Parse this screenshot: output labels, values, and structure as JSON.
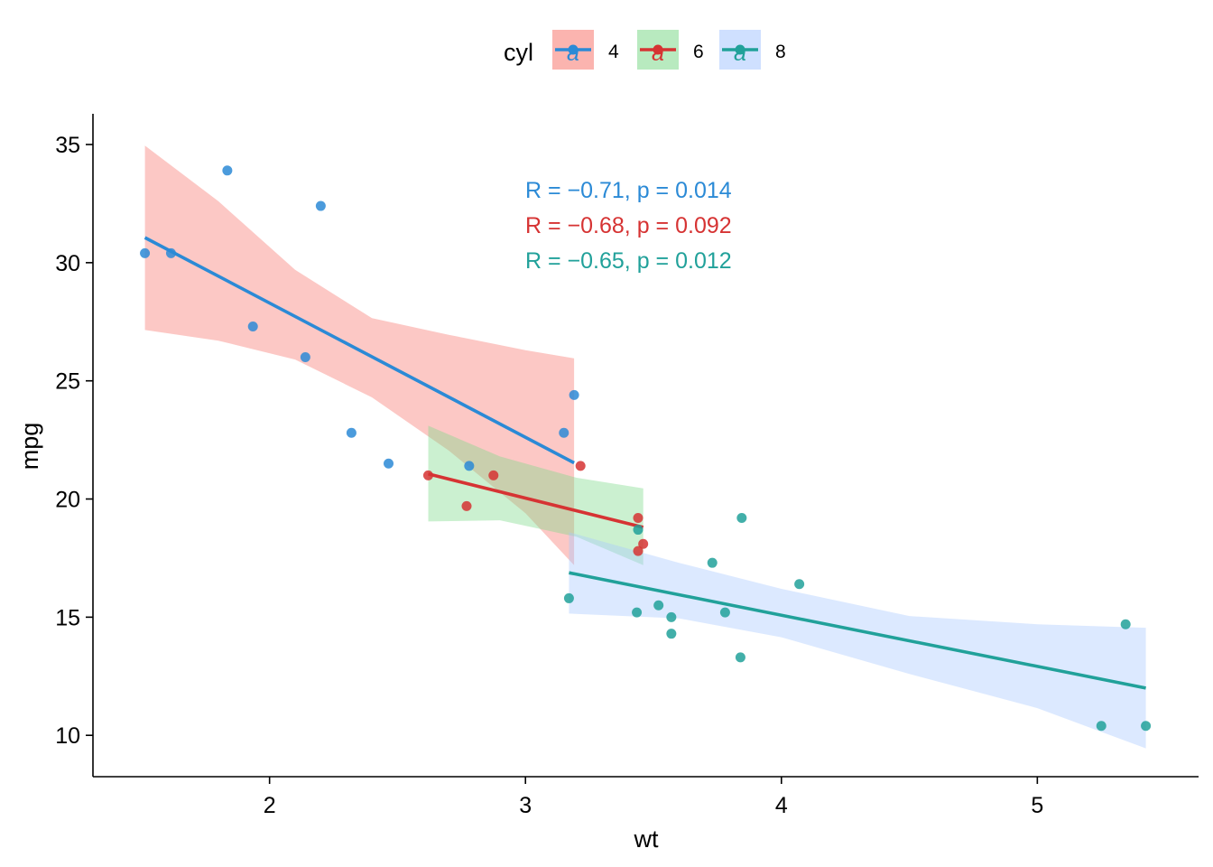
{
  "chart_data": {
    "type": "scatter",
    "xlabel": "wt",
    "ylabel": "mpg",
    "xlim": [
      1.31,
      5.63
    ],
    "ylim": [
      8.25,
      36.3
    ],
    "x_ticks": [
      2,
      3,
      4,
      5
    ],
    "y_ticks": [
      10,
      15,
      20,
      25,
      30,
      35
    ],
    "x_tick_labels": [
      "2",
      "3",
      "4",
      "5"
    ],
    "y_tick_labels": [
      "10",
      "15",
      "20",
      "25",
      "30",
      "35"
    ],
    "grid": false,
    "legend": {
      "title": "cyl",
      "placement": "top",
      "glyph_letter": "a"
    },
    "series": [
      {
        "name": "4",
        "color": "#2b8ad6",
        "band_color": "#f8766d",
        "x": [
          2.32,
          3.19,
          3.15,
          2.2,
          1.615,
          1.835,
          2.465,
          1.935,
          2.14,
          1.513,
          2.78
        ],
        "y": [
          22.8,
          24.4,
          22.8,
          32.4,
          30.4,
          33.9,
          21.5,
          27.3,
          26.0,
          30.4,
          21.4
        ],
        "fit": {
          "x": [
            1.513,
            3.19
          ],
          "y": [
            31.06,
            21.53
          ]
        },
        "band": {
          "x": [
            1.513,
            1.8,
            2.1,
            2.4,
            2.7,
            3.0,
            3.19
          ],
          "upper": [
            34.95,
            32.6,
            29.7,
            27.65,
            26.95,
            26.3,
            25.95
          ],
          "lower": [
            27.15,
            26.7,
            25.9,
            24.3,
            22.05,
            19.4,
            17.2
          ]
        },
        "stat_label": "R = −0.71, p = 0.014"
      },
      {
        "name": "6",
        "color": "#d63333",
        "band_color": "#7ed98a",
        "x": [
          2.62,
          2.875,
          3.215,
          3.46,
          3.44,
          3.44,
          2.77
        ],
        "y": [
          21.0,
          21.0,
          21.4,
          18.1,
          19.2,
          17.8,
          19.7
        ],
        "fit": {
          "x": [
            2.62,
            3.46
          ],
          "y": [
            21.06,
            18.8
          ]
        },
        "band": {
          "x": [
            2.62,
            2.9,
            3.2,
            3.46
          ],
          "upper": [
            23.1,
            21.8,
            20.9,
            20.45
          ],
          "lower": [
            19.05,
            19.1,
            18.4,
            17.2
          ]
        },
        "stat_label": "R = −0.68, p = 0.092"
      },
      {
        "name": "8",
        "color": "#21a19a",
        "band_color": "#a8c7ff",
        "x": [
          3.44,
          3.57,
          4.07,
          3.73,
          3.78,
          5.25,
          5.424,
          5.345,
          3.52,
          3.435,
          3.84,
          3.845,
          3.17,
          3.57
        ],
        "y": [
          18.7,
          14.3,
          16.4,
          17.3,
          15.2,
          10.4,
          10.4,
          14.7,
          15.5,
          15.2,
          13.3,
          19.2,
          15.8,
          15.0
        ],
        "fit": {
          "x": [
            3.17,
            5.424
          ],
          "y": [
            16.88,
            12.0
          ]
        },
        "band": {
          "x": [
            3.17,
            3.6,
            4.0,
            4.5,
            5.0,
            5.424
          ],
          "upper": [
            18.6,
            17.3,
            16.2,
            15.05,
            14.7,
            14.55
          ],
          "lower": [
            15.15,
            14.95,
            14.15,
            12.6,
            11.15,
            9.45
          ]
        },
        "stat_label": "R = −0.65, p = 0.012"
      }
    ]
  }
}
